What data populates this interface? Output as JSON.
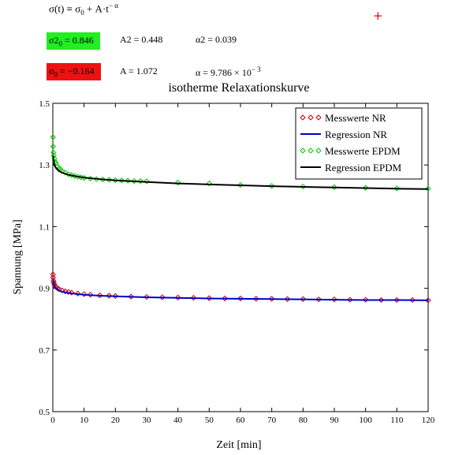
{
  "formula": {
    "lhs": "σ(t)",
    "eq": " = ",
    "sigma": "σ",
    "sigma_sub": "0",
    "plus": " + A·t",
    "exp": "− α"
  },
  "params_epdm": {
    "s2_label": "σ2",
    "s2_sub": "0",
    "s2_value": " = 0.846",
    "a2": "A2 = 0.448",
    "alpha2": "α2 = 0.039",
    "highlight_color": "#22ee22"
  },
  "params_nr": {
    "s_label": "σ",
    "s_sub": "0",
    "s_value": " = −0.164",
    "a": "A = 1.072",
    "alpha_text": "α = 9.786 × 10",
    "alpha_exp": "− 3",
    "highlight_color": "#ee1111"
  },
  "marker_symbol": "+",
  "chart_data": {
    "type": "scatter",
    "title": "isotherme Relaxationskurve",
    "xlabel": "Zeit [min]",
    "ylabel": "Spannung [MPa]",
    "xlim": [
      0,
      120
    ],
    "ylim": [
      0.5,
      1.5
    ],
    "xticks": [
      0,
      10,
      20,
      30,
      40,
      50,
      60,
      70,
      80,
      90,
      100,
      110,
      120
    ],
    "yticks": [
      0.5,
      0.7,
      0.9,
      1.1,
      1.3,
      1.5
    ],
    "ytick_labels": [
      "0.5",
      "0.7",
      "0.9",
      "1.1",
      "1.3",
      "1.5"
    ],
    "grid": false,
    "legend_position": "top-right",
    "series": [
      {
        "name": "Messwerte NR",
        "kind": "markers",
        "marker": "diamond",
        "color": "#cc0000",
        "x": [
          0.05,
          0.1,
          0.2,
          0.3,
          0.5,
          0.75,
          1,
          1.5,
          2,
          3,
          4,
          5,
          6,
          8,
          10,
          12,
          15,
          18,
          20,
          25,
          30,
          35,
          40,
          45,
          50,
          55,
          60,
          65,
          70,
          75,
          80,
          85,
          90,
          95,
          100,
          105,
          110,
          115,
          120
        ],
        "y": [
          0.945,
          0.935,
          0.925,
          0.918,
          0.912,
          0.907,
          0.904,
          0.9,
          0.897,
          0.893,
          0.89,
          0.888,
          0.886,
          0.883,
          0.881,
          0.879,
          0.877,
          0.876,
          0.875,
          0.873,
          0.872,
          0.871,
          0.87,
          0.869,
          0.868,
          0.867,
          0.867,
          0.866,
          0.866,
          0.865,
          0.865,
          0.864,
          0.864,
          0.863,
          0.863,
          0.862,
          0.862,
          0.862,
          0.861
        ]
      },
      {
        "name": "Regression NR",
        "kind": "line",
        "color": "#0000cc",
        "x": [
          0.1,
          0.3,
          0.5,
          1,
          2,
          3,
          5,
          8,
          10,
          15,
          20,
          30,
          40,
          50,
          60,
          70,
          80,
          90,
          100,
          110,
          120
        ],
        "y": [
          0.928,
          0.914,
          0.908,
          0.9,
          0.893,
          0.889,
          0.885,
          0.881,
          0.879,
          0.876,
          0.874,
          0.871,
          0.869,
          0.867,
          0.866,
          0.865,
          0.864,
          0.863,
          0.862,
          0.862,
          0.861
        ]
      },
      {
        "name": "Messwerte EPDM",
        "kind": "markers",
        "marker": "diamond",
        "color": "#00cc00",
        "x": [
          0.05,
          0.1,
          0.2,
          0.3,
          0.5,
          0.75,
          1,
          1.5,
          2,
          2.5,
          3,
          4,
          5,
          6,
          7,
          8,
          9,
          10,
          12,
          14,
          16,
          18,
          20,
          22,
          24,
          26,
          28,
          30,
          40,
          50,
          60,
          70,
          80,
          90,
          100,
          110,
          120
        ],
        "y": [
          1.39,
          1.36,
          1.34,
          1.33,
          1.32,
          1.31,
          1.305,
          1.295,
          1.29,
          1.285,
          1.28,
          1.275,
          1.27,
          1.267,
          1.264,
          1.262,
          1.26,
          1.258,
          1.256,
          1.254,
          1.253,
          1.252,
          1.251,
          1.25,
          1.249,
          1.248,
          1.248,
          1.247,
          1.243,
          1.24,
          1.235,
          1.232,
          1.23,
          1.228,
          1.226,
          1.224,
          1.223
        ]
      },
      {
        "name": "Regression EPDM",
        "kind": "line",
        "color": "#000000",
        "x": [
          0.1,
          0.3,
          0.5,
          1,
          2,
          3,
          5,
          8,
          10,
          15,
          20,
          30,
          40,
          50,
          60,
          70,
          80,
          90,
          100,
          110,
          120
        ],
        "y": [
          1.33,
          1.31,
          1.3,
          1.29,
          1.28,
          1.275,
          1.268,
          1.262,
          1.259,
          1.254,
          1.25,
          1.245,
          1.24,
          1.237,
          1.234,
          1.231,
          1.229,
          1.227,
          1.225,
          1.223,
          1.222
        ]
      }
    ]
  }
}
